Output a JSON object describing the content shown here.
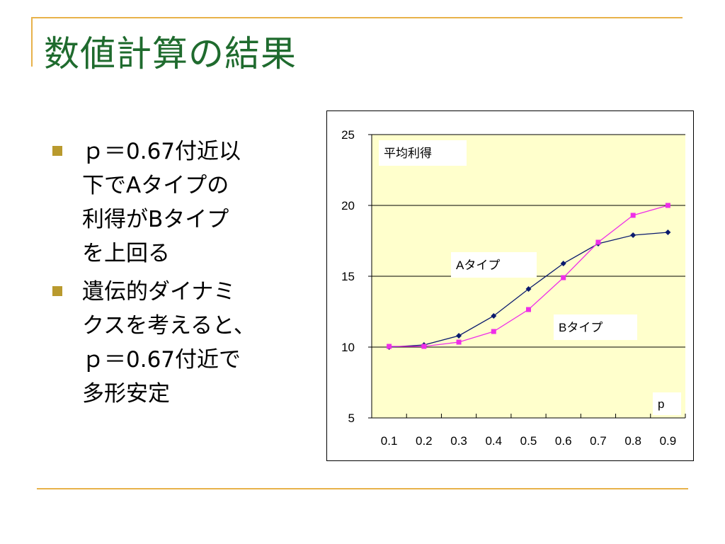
{
  "title": "数値計算の結果",
  "bullets": [
    "ｐ＝0.67付近以\n下でAタイプの\n利得がBタイプ\nを上回る",
    "遺伝的ダイナミ\nクスを考えると、\nｐ＝0.67付近で\n多形安定"
  ],
  "chart_data": {
    "type": "line",
    "categories": [
      "0.1",
      "0.2",
      "0.3",
      "0.4",
      "0.5",
      "0.6",
      "0.7",
      "0.8",
      "0.9"
    ],
    "ylim": [
      5,
      25
    ],
    "yticks": [
      5,
      10,
      15,
      20,
      25
    ],
    "ylabel": "平均利得",
    "xlabel": "p",
    "grid": true,
    "series": [
      {
        "name": "Aタイプ",
        "color": "#0a1a6e",
        "marker": "diamond",
        "values": [
          10.0,
          10.15,
          10.8,
          12.2,
          14.1,
          15.9,
          17.3,
          17.9,
          18.1
        ]
      },
      {
        "name": "Bタイプ",
        "color": "#ee2ee8",
        "marker": "square",
        "values": [
          10.05,
          10.05,
          10.35,
          11.1,
          12.65,
          14.9,
          17.4,
          19.3,
          20.0
        ]
      }
    ],
    "plot_background": "#ffffcc"
  }
}
